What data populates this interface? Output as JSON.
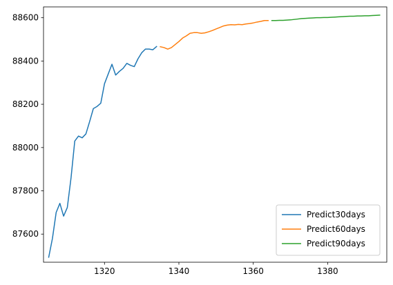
{
  "chart_data": {
    "type": "line",
    "title": "",
    "xlabel": "",
    "ylabel": "",
    "xlim": [
      1303.6,
      1395.9
    ],
    "ylim": [
      87470,
      88650
    ],
    "xticks": [
      1320,
      1340,
      1360,
      1380
    ],
    "yticks": [
      87600,
      87800,
      88000,
      88200,
      88400,
      88600
    ],
    "grid": false,
    "legend_position": "lower right",
    "series": [
      {
        "name": "Predict30days",
        "color": "#1f77b4",
        "x": [
          1305,
          1306,
          1307,
          1308,
          1309,
          1310,
          1311,
          1312,
          1313,
          1314,
          1315,
          1316,
          1317,
          1318,
          1319,
          1320,
          1321,
          1322,
          1323,
          1324,
          1325,
          1326,
          1327,
          1328,
          1329,
          1330,
          1331,
          1332,
          1333,
          1334
        ],
        "y": [
          87493,
          87580,
          87700,
          87742,
          87683,
          87723,
          87860,
          88030,
          88053,
          88045,
          88063,
          88120,
          88180,
          88190,
          88205,
          88295,
          88340,
          88385,
          88335,
          88352,
          88366,
          88389,
          88380,
          88374,
          88410,
          88438,
          88455,
          88455,
          88452,
          88467
        ]
      },
      {
        "name": "Predict60days",
        "color": "#ff7f0e",
        "x": [
          1335,
          1336,
          1337,
          1338,
          1339,
          1340,
          1341,
          1342,
          1343,
          1344,
          1345,
          1346,
          1347,
          1348,
          1349,
          1350,
          1351,
          1352,
          1353,
          1354,
          1355,
          1356,
          1357,
          1358,
          1359,
          1360,
          1361,
          1362,
          1363,
          1364
        ],
        "y": [
          88466,
          88462,
          88455,
          88462,
          88476,
          88490,
          88506,
          88516,
          88528,
          88531,
          88531,
          88528,
          88530,
          88535,
          88541,
          88548,
          88555,
          88562,
          88566,
          88568,
          88567,
          88569,
          88568,
          88571,
          88573,
          88576,
          88580,
          88583,
          88587,
          88587
        ]
      },
      {
        "name": "Predict90days",
        "color": "#2ca02c",
        "x": [
          1365,
          1366,
          1367,
          1368,
          1369,
          1370,
          1371,
          1372,
          1373,
          1374,
          1375,
          1376,
          1377,
          1378,
          1379,
          1380,
          1381,
          1382,
          1383,
          1384,
          1385,
          1386,
          1387,
          1388,
          1389,
          1390,
          1391,
          1392,
          1393,
          1394
        ],
        "y": [
          88587,
          88587,
          88588,
          88588,
          88589,
          88590,
          88592,
          88594,
          88596,
          88597,
          88598,
          88599,
          88600,
          88600,
          88601,
          88601,
          88602,
          88603,
          88604,
          88605,
          88606,
          88607,
          88607,
          88608,
          88608,
          88609,
          88609,
          88610,
          88611,
          88612
        ]
      }
    ]
  }
}
